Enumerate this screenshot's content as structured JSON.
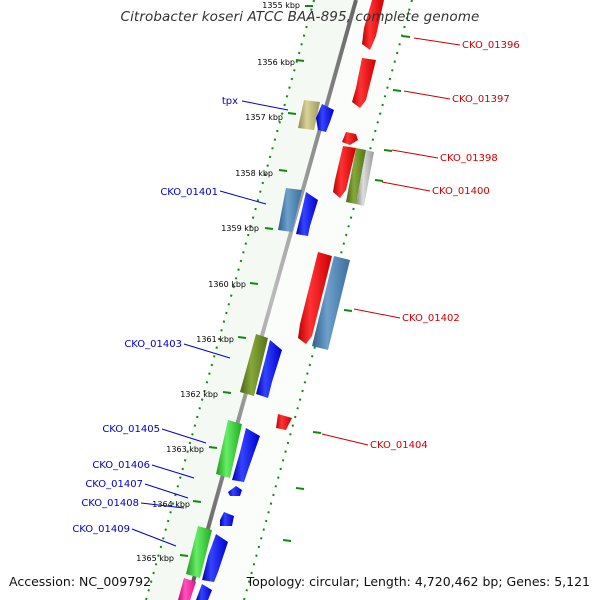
{
  "header": {
    "title": "Citrobacter koseri ATCC BAA-895, complete genome"
  },
  "footer": {
    "accession": "Accession: NC_009792",
    "topology": "Topology: circular; Length: 4,720,462 bp; Genes: 5,121"
  },
  "map": {
    "ticks": [
      "1355 kbp",
      "1356 kbp",
      "1357 kbp",
      "1358 kbp",
      "1359 kbp",
      "1360 kbp",
      "1361 kbp",
      "1362 kbp",
      "1363 kbp",
      "1364 kbp",
      "1365 kbp"
    ],
    "left_labels": [
      "tpx",
      "CKO_01401",
      "CKO_01403",
      "CKO_01405",
      "CKO_01406",
      "CKO_01407",
      "CKO_01408",
      "CKO_01409"
    ],
    "right_labels": [
      "CKO_01396",
      "CKO_01397",
      "CKO_01398",
      "CKO_01400",
      "CKO_01402",
      "CKO_01404"
    ]
  },
  "colors": {
    "forward": "#0000ff",
    "reverse": "#ff0000",
    "forward_label": "#0000cc",
    "reverse_label": "#cc0000",
    "backbone": "#888888",
    "tick": "#118811"
  }
}
